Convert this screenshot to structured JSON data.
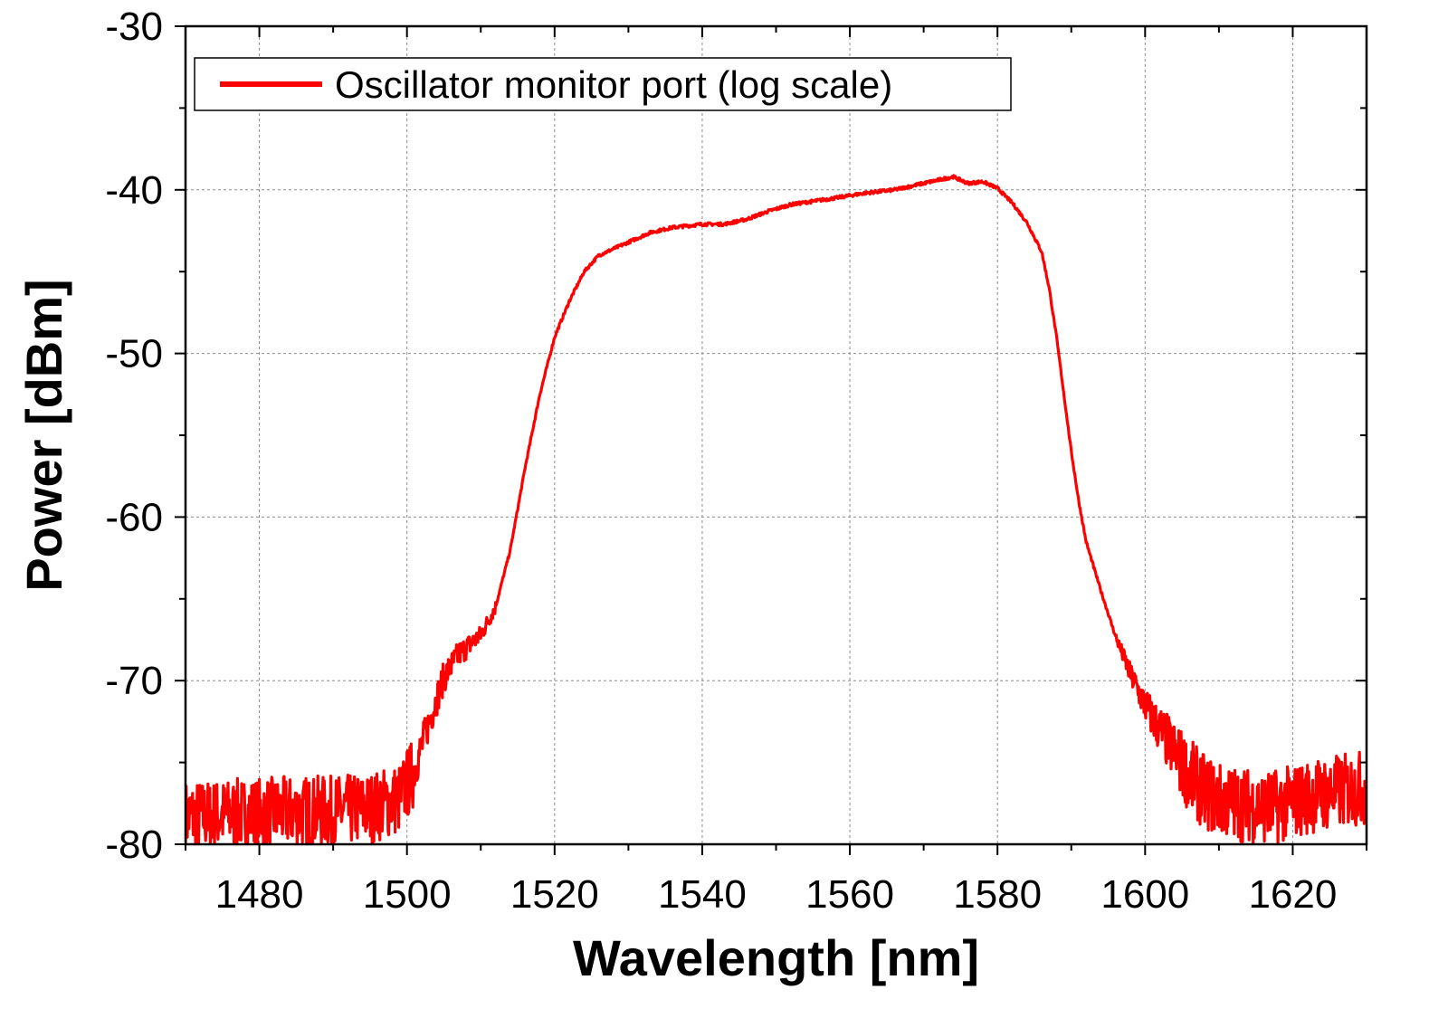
{
  "chart_data": {
    "type": "line",
    "xlabel": "Wavelength [nm]",
    "ylabel": "Power [dBm]",
    "xlim": [
      1470,
      1630
    ],
    "ylim": [
      -80,
      -30
    ],
    "x_ticks": [
      1480,
      1500,
      1520,
      1540,
      1560,
      1580,
      1600,
      1620
    ],
    "y_ticks": [
      -30,
      -40,
      -50,
      -60,
      -70,
      -80
    ],
    "grid": true,
    "legend_position": "top-left",
    "series": [
      {
        "name": "Oscillator monitor port (log scale)",
        "color": "#ff0000",
        "points": [
          [
            1470,
            -78.3
          ],
          [
            1475,
            -78.2
          ],
          [
            1480,
            -78.1
          ],
          [
            1485,
            -78.0
          ],
          [
            1490,
            -78.0
          ],
          [
            1495,
            -77.8
          ],
          [
            1499,
            -77.2
          ],
          [
            1501,
            -75.5
          ],
          [
            1503,
            -72.5
          ],
          [
            1505,
            -69.8
          ],
          [
            1507,
            -68.4
          ],
          [
            1510,
            -67.2
          ],
          [
            1512,
            -65.5
          ],
          [
            1514,
            -62.0
          ],
          [
            1516,
            -57.0
          ],
          [
            1518,
            -52.5
          ],
          [
            1520,
            -49.0
          ],
          [
            1522,
            -46.8
          ],
          [
            1524,
            -45.0
          ],
          [
            1526,
            -44.0
          ],
          [
            1528,
            -43.6
          ],
          [
            1530,
            -43.2
          ],
          [
            1533,
            -42.6
          ],
          [
            1536,
            -42.3
          ],
          [
            1540,
            -42.1
          ],
          [
            1543,
            -42.1
          ],
          [
            1546,
            -41.8
          ],
          [
            1549,
            -41.3
          ],
          [
            1552,
            -40.9
          ],
          [
            1555,
            -40.7
          ],
          [
            1558,
            -40.5
          ],
          [
            1562,
            -40.2
          ],
          [
            1566,
            -40.0
          ],
          [
            1569,
            -39.7
          ],
          [
            1572,
            -39.4
          ],
          [
            1574,
            -39.2
          ],
          [
            1576,
            -39.6
          ],
          [
            1578,
            -39.5
          ],
          [
            1580,
            -39.9
          ],
          [
            1582,
            -40.8
          ],
          [
            1584,
            -42.0
          ],
          [
            1586,
            -43.8
          ],
          [
            1587,
            -46.0
          ],
          [
            1588,
            -49.0
          ],
          [
            1589,
            -52.5
          ],
          [
            1590,
            -56.0
          ],
          [
            1591,
            -59.0
          ],
          [
            1592,
            -61.5
          ],
          [
            1594,
            -64.5
          ],
          [
            1596,
            -67.3
          ],
          [
            1598,
            -69.6
          ],
          [
            1600,
            -71.5
          ],
          [
            1602,
            -73.0
          ],
          [
            1604,
            -74.4
          ],
          [
            1606,
            -75.8
          ],
          [
            1608,
            -76.8
          ],
          [
            1610,
            -77.3
          ],
          [
            1612,
            -77.5
          ],
          [
            1614,
            -77.6
          ],
          [
            1616,
            -77.7
          ],
          [
            1618,
            -77.7
          ],
          [
            1620,
            -77.4
          ],
          [
            1623,
            -77.0
          ],
          [
            1626,
            -76.8
          ],
          [
            1630,
            -76.5
          ]
        ]
      }
    ]
  }
}
